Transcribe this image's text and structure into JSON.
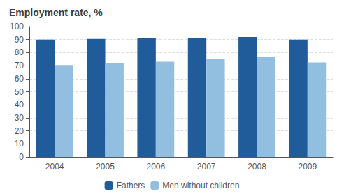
{
  "chart_data": {
    "type": "bar",
    "title": "Employment rate, %",
    "categories": [
      "2004",
      "2005",
      "2006",
      "2007",
      "2008",
      "2009"
    ],
    "series": [
      {
        "name": "Fathers",
        "color": "#1F5C99",
        "values": [
          90.0,
          90.5,
          91.0,
          91.5,
          92.0,
          90.0
        ]
      },
      {
        "name": "Men without children",
        "color": "#92BFDF",
        "values": [
          70.5,
          72.0,
          73.0,
          75.0,
          76.5,
          72.5
        ]
      }
    ],
    "ylim": [
      0,
      100
    ],
    "yticks": [
      0,
      10,
      20,
      30,
      40,
      50,
      60,
      70,
      80,
      90,
      100
    ],
    "grid": true,
    "legend": "bottom"
  }
}
